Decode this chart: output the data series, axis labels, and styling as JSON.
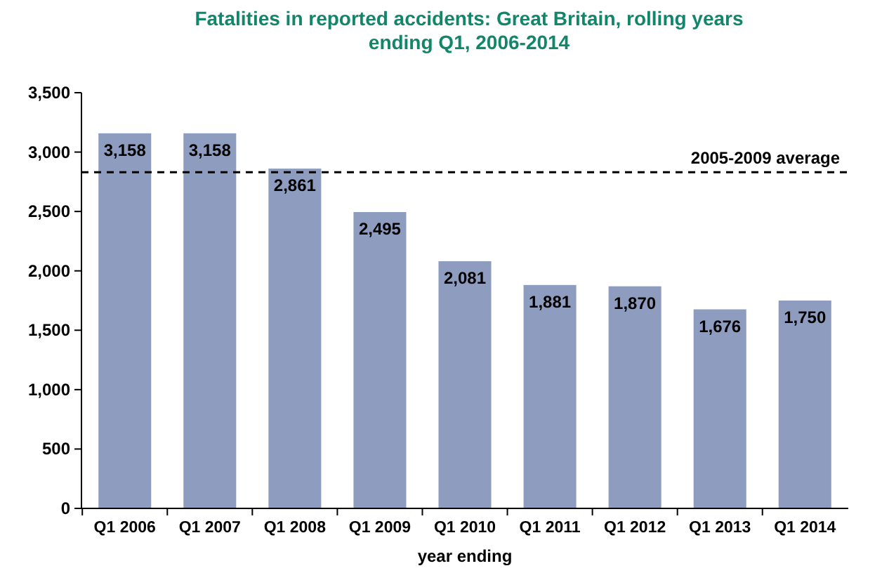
{
  "chart_data": {
    "type": "bar",
    "title": "Fatalities in reported accidents: Great Britain, rolling years ending Q1, 2006-2014",
    "xlabel": "year ending",
    "categories": [
      "Q1 2006",
      "Q1 2007",
      "Q1 2008",
      "Q1 2009",
      "Q1 2010",
      "Q1 2011",
      "Q1 2012",
      "Q1 2013",
      "Q1 2014"
    ],
    "values": [
      3158,
      3158,
      2861,
      2495,
      2081,
      1881,
      1870,
      1676,
      1750
    ],
    "color": "#8e9dbf",
    "value_labels": [
      "3,158",
      "3,158",
      "2,861",
      "2,495",
      "2,081",
      "1,881",
      "1,870",
      "1,676",
      "1,750"
    ],
    "ylim": [
      0,
      3500
    ],
    "yticks": [
      {
        "value": 0,
        "label": "0"
      },
      {
        "value": 500,
        "label": "500"
      },
      {
        "value": 1000,
        "label": "1,000"
      },
      {
        "value": 1500,
        "label": "1,500"
      },
      {
        "value": 2000,
        "label": "2,000"
      },
      {
        "value": 2500,
        "label": "2,500"
      },
      {
        "value": 3000,
        "label": "3,000"
      },
      {
        "value": 3500,
        "label": "3,500"
      }
    ],
    "ref_lines": [
      {
        "axis": "y",
        "value": 2830,
        "label": "2005-2009 average",
        "color": "#000000",
        "line_style": "dashed"
      }
    ],
    "grid": false
  }
}
